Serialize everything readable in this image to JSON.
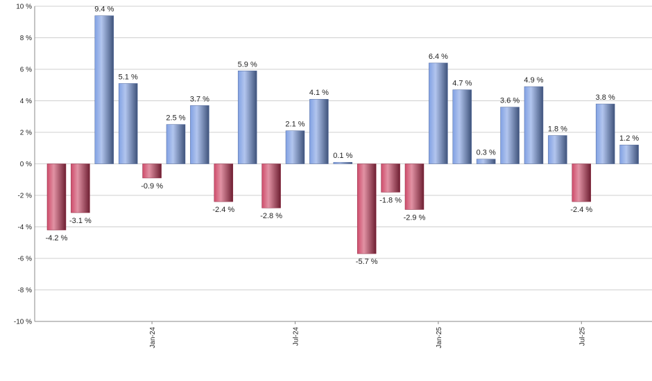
{
  "chart_data": {
    "type": "bar",
    "categories": [
      null,
      null,
      null,
      null,
      "Jan-24",
      null,
      null,
      null,
      null,
      null,
      "Jul-24",
      null,
      null,
      null,
      null,
      null,
      "Jan-25",
      null,
      null,
      null,
      null,
      null,
      "Jul-25",
      null,
      null
    ],
    "values": [
      -4.2,
      -3.1,
      9.4,
      5.1,
      -0.9,
      2.5,
      3.7,
      -2.4,
      5.9,
      -2.8,
      2.1,
      4.1,
      0.1,
      -5.7,
      -1.8,
      -2.9,
      6.4,
      4.7,
      0.3,
      3.6,
      4.9,
      1.8,
      -2.4,
      3.8,
      1.2
    ],
    "value_labels": [
      "-4.2 %",
      "-3.1 %",
      "9.4 %",
      "5.1 %",
      "-0.9 %",
      "2.5 %",
      "3.7 %",
      "-2.4 %",
      "5.9 %",
      "-2.8 %",
      "2.1 %",
      "4.1 %",
      "0.1 %",
      "-5.7 %",
      "-1.8 %",
      "-2.9 %",
      "6.4 %",
      "4.7 %",
      "0.3 %",
      "3.6 %",
      "4.9 %",
      "1.8 %",
      "-2.4 %",
      "3.8 %",
      "1.2 %"
    ],
    "color": "#7396e0",
    "negative_color": "#c8385a",
    "ylim": [
      -10,
      10
    ],
    "yticks": [
      {
        "value": -10,
        "label": "-10 %"
      },
      {
        "value": -8,
        "label": "-8 %"
      },
      {
        "value": -6,
        "label": "-6 %"
      },
      {
        "value": -4,
        "label": "-4 %"
      },
      {
        "value": -2,
        "label": "-2 %"
      },
      {
        "value": 0,
        "label": "0 %"
      },
      {
        "value": 2,
        "label": "2 %"
      },
      {
        "value": 4,
        "label": "4 %"
      },
      {
        "value": 6,
        "label": "6 %"
      },
      {
        "value": 8,
        "label": "8 %"
      },
      {
        "value": 10,
        "label": "10 %"
      }
    ],
    "grid": true
  }
}
